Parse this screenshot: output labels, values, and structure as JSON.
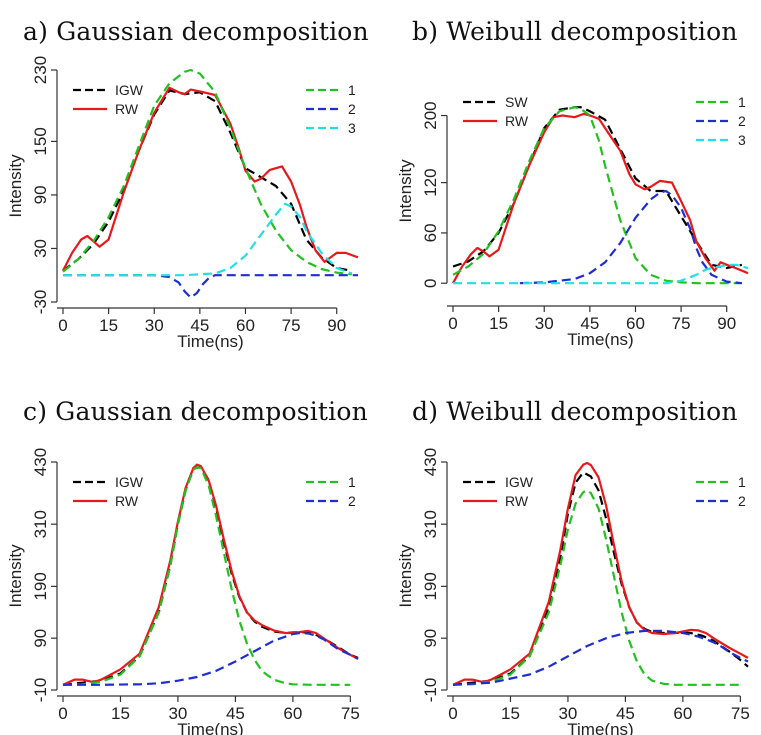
{
  "chart_data": [
    {
      "type": "line",
      "title": "a)  Gaussian decomposition",
      "xlabel": "Time(ns)",
      "ylabel": "Intensity",
      "xlim": [
        0,
        97
      ],
      "ylim": [
        -30,
        230
      ],
      "xticks": [
        0,
        15,
        30,
        45,
        60,
        75,
        90
      ],
      "yticks": [
        -30,
        30,
        90,
        150,
        230
      ],
      "legend_left": [
        "IGW",
        "RW"
      ],
      "legend_right": [
        "1",
        "2",
        "3"
      ],
      "series": [
        {
          "name": "IGW",
          "color": "#000000",
          "style": "dash",
          "x": [
            0,
            5,
            10,
            15,
            20,
            25,
            30,
            35,
            40,
            45,
            50,
            55,
            60,
            65,
            70,
            75,
            80,
            85,
            90,
            95
          ],
          "y": [
            5,
            18,
            35,
            60,
            95,
            140,
            180,
            207,
            203,
            205,
            195,
            160,
            120,
            110,
            100,
            80,
            40,
            20,
            8,
            5
          ]
        },
        {
          "name": "RW",
          "color": "#e8191b",
          "style": "solid",
          "x": [
            0,
            3,
            6,
            8,
            10,
            12,
            15,
            20,
            25,
            30,
            35,
            38,
            40,
            42,
            45,
            50,
            55,
            58,
            60,
            63,
            65,
            68,
            72,
            75,
            78,
            80,
            83,
            86,
            88,
            90,
            93,
            97
          ],
          "y": [
            5,
            25,
            40,
            44,
            38,
            32,
            40,
            93,
            140,
            182,
            210,
            205,
            203,
            208,
            206,
            202,
            170,
            140,
            117,
            105,
            108,
            118,
            122,
            105,
            78,
            55,
            28,
            15,
            20,
            25,
            25,
            20
          ]
        },
        {
          "name": "1",
          "color": "#22c11f",
          "style": "dash",
          "x": [
            0,
            5,
            10,
            15,
            20,
            25,
            30,
            35,
            40,
            42,
            45,
            50,
            55,
            60,
            65,
            70,
            75,
            80,
            85,
            90,
            95
          ],
          "y": [
            4,
            18,
            38,
            65,
            100,
            145,
            190,
            215,
            228,
            230,
            226,
            205,
            165,
            120,
            80,
            50,
            28,
            15,
            7,
            3,
            1
          ]
        },
        {
          "name": "2",
          "color": "#1f2ed1",
          "style": "dash",
          "x": [
            0,
            20,
            30,
            35,
            38,
            40,
            42,
            44,
            46,
            48,
            50,
            55,
            60,
            70,
            80,
            97
          ],
          "y": [
            0,
            0,
            0,
            -2,
            -8,
            -18,
            -25,
            -20,
            -10,
            -3,
            0,
            0,
            0,
            0,
            0,
            0
          ]
        },
        {
          "name": "3",
          "color": "#21e0e6",
          "style": "dash",
          "x": [
            0,
            40,
            50,
            55,
            60,
            65,
            70,
            73,
            75,
            78,
            80,
            85,
            90,
            95
          ],
          "y": [
            0,
            0,
            2,
            8,
            22,
            45,
            68,
            80,
            77,
            65,
            50,
            25,
            8,
            2
          ]
        }
      ]
    },
    {
      "type": "line",
      "title": "b) Weibull decomposition",
      "xlabel": "Time(ns)",
      "ylabel": "Intensity",
      "xlim": [
        0,
        97
      ],
      "ylim": [
        -20,
        240
      ],
      "xticks": [
        0,
        15,
        30,
        45,
        60,
        75,
        90
      ],
      "yticks": [
        0,
        60,
        120,
        200
      ],
      "legend_left": [
        "SW",
        "RW"
      ],
      "legend_right": [
        "1",
        "2",
        "3"
      ],
      "series": [
        {
          "name": "SW",
          "color": "#000000",
          "style": "dash",
          "x": [
            0,
            5,
            10,
            15,
            20,
            25,
            30,
            35,
            40,
            42,
            45,
            50,
            55,
            60,
            65,
            70,
            75,
            80,
            85,
            90,
            95
          ],
          "y": [
            20,
            26,
            38,
            60,
            95,
            140,
            185,
            207,
            210,
            210,
            205,
            195,
            160,
            125,
            110,
            110,
            80,
            50,
            22,
            18,
            22
          ]
        },
        {
          "name": "RW",
          "color": "#e8191b",
          "style": "solid",
          "x": [
            0,
            3,
            6,
            8,
            10,
            12,
            15,
            20,
            25,
            30,
            33,
            36,
            40,
            43,
            45,
            48,
            50,
            55,
            58,
            60,
            63,
            65,
            68,
            72,
            75,
            78,
            80,
            83,
            86,
            88,
            90,
            93,
            97
          ],
          "y": [
            0,
            20,
            35,
            42,
            38,
            32,
            40,
            95,
            140,
            180,
            198,
            200,
            198,
            202,
            200,
            196,
            185,
            158,
            130,
            118,
            112,
            115,
            122,
            120,
            98,
            75,
            50,
            30,
            15,
            25,
            22,
            18,
            12
          ]
        },
        {
          "name": "1",
          "color": "#22c11f",
          "style": "dash",
          "x": [
            0,
            5,
            10,
            15,
            20,
            25,
            30,
            35,
            40,
            42,
            45,
            48,
            50,
            55,
            60,
            65,
            70,
            75,
            80,
            85,
            90,
            95
          ],
          "y": [
            10,
            20,
            35,
            62,
            100,
            145,
            185,
            205,
            210,
            208,
            200,
            170,
            140,
            75,
            30,
            10,
            3,
            1,
            0,
            0,
            0,
            0
          ]
        },
        {
          "name": "2",
          "color": "#1f2ed1",
          "style": "dash",
          "x": [
            22,
            30,
            40,
            45,
            50,
            55,
            60,
            65,
            68,
            70,
            72,
            75,
            78,
            80,
            82,
            85,
            90,
            95
          ],
          "y": [
            0,
            1,
            5,
            12,
            25,
            48,
            78,
            100,
            108,
            110,
            105,
            90,
            65,
            42,
            25,
            10,
            2,
            0
          ]
        },
        {
          "name": "3",
          "color": "#21e0e6",
          "style": "dash",
          "x": [
            0,
            60,
            70,
            75,
            80,
            83,
            85,
            88,
            90,
            93,
            95,
            97
          ],
          "y": [
            0,
            0,
            0,
            3,
            10,
            16,
            18,
            20,
            22,
            22,
            20,
            18
          ]
        }
      ]
    },
    {
      "type": "line",
      "title": "c)  Gaussian decomposition",
      "xlabel": "Time(ns)",
      "ylabel": "Intensity",
      "xlim": [
        0,
        77
      ],
      "ylim": [
        -10,
        430
      ],
      "xticks": [
        0,
        15,
        30,
        45,
        60,
        75
      ],
      "yticks": [
        -10,
        90,
        190,
        310,
        430
      ],
      "legend_left": [
        "IGW",
        "RW"
      ],
      "legend_right": [
        "1",
        "2"
      ],
      "series": [
        {
          "name": "IGW",
          "color": "#000000",
          "style": "dash",
          "x": [
            0,
            5,
            10,
            15,
            20,
            25,
            28,
            30,
            32,
            34,
            36,
            38,
            40,
            42,
            44,
            46,
            48,
            50,
            52,
            55,
            58,
            60,
            62,
            65,
            68,
            72,
            75,
            77
          ],
          "y": [
            0,
            4,
            8,
            22,
            55,
            140,
            230,
            310,
            375,
            418,
            420,
            395,
            340,
            275,
            215,
            170,
            140,
            122,
            112,
            103,
            100,
            101,
            102,
            100,
            90,
            72,
            58,
            52
          ]
        },
        {
          "name": "RW",
          "color": "#e8191b",
          "style": "solid",
          "x": [
            0,
            3,
            5,
            8,
            10,
            15,
            20,
            25,
            28,
            30,
            32,
            34,
            35,
            36,
            38,
            40,
            42,
            44,
            46,
            48,
            50,
            52,
            55,
            58,
            60,
            62,
            64,
            66,
            68,
            72,
            75,
            77
          ],
          "y": [
            0,
            10,
            10,
            5,
            10,
            30,
            60,
            150,
            240,
            315,
            380,
            418,
            425,
            422,
            395,
            345,
            280,
            220,
            172,
            140,
            124,
            115,
            105,
            100,
            100,
            102,
            104,
            100,
            90,
            70,
            58,
            50
          ]
        },
        {
          "name": "1",
          "color": "#22c11f",
          "style": "dash",
          "x": [
            0,
            5,
            10,
            15,
            20,
            25,
            28,
            30,
            32,
            34,
            35,
            36,
            38,
            40,
            42,
            44,
            46,
            48,
            50,
            52,
            55,
            58,
            60,
            65,
            70,
            75
          ],
          "y": [
            0,
            1,
            6,
            20,
            55,
            140,
            230,
            310,
            375,
            415,
            420,
            418,
            385,
            325,
            255,
            185,
            125,
            80,
            48,
            26,
            10,
            3,
            1,
            0,
            0,
            0
          ]
        },
        {
          "name": "2",
          "color": "#1f2ed1",
          "style": "dash",
          "x": [
            0,
            10,
            20,
            25,
            30,
            35,
            40,
            45,
            50,
            55,
            60,
            62,
            64,
            66,
            68,
            70,
            72,
            75,
            77
          ],
          "y": [
            0,
            0,
            1,
            3,
            8,
            15,
            27,
            45,
            65,
            85,
            98,
            100,
            99,
            95,
            88,
            78,
            68,
            58,
            50
          ]
        }
      ]
    },
    {
      "type": "line",
      "title": "d) Weibull decomposition",
      "xlabel": "Time(ns)",
      "ylabel": "Intensity",
      "xlim": [
        0,
        77
      ],
      "ylim": [
        -10,
        430
      ],
      "xticks": [
        0,
        15,
        30,
        45,
        60,
        75
      ],
      "yticks": [
        -10,
        90,
        190,
        310,
        430
      ],
      "legend_left": [
        "IGW",
        "RW"
      ],
      "legend_right": [
        "1",
        "2"
      ],
      "series": [
        {
          "name": "IGW",
          "color": "#000000",
          "style": "dash",
          "x": [
            0,
            5,
            10,
            15,
            20,
            25,
            28,
            30,
            32,
            34,
            36,
            38,
            40,
            42,
            44,
            46,
            48,
            50,
            52,
            55,
            58,
            60,
            62,
            65,
            68,
            72,
            75,
            77
          ],
          "y": [
            0,
            4,
            8,
            22,
            55,
            150,
            245,
            330,
            390,
            410,
            402,
            375,
            320,
            255,
            195,
            150,
            120,
            108,
            102,
            100,
            100,
            101,
            100,
            95,
            85,
            65,
            48,
            35
          ]
        },
        {
          "name": "RW",
          "color": "#e8191b",
          "style": "solid",
          "x": [
            0,
            3,
            5,
            8,
            10,
            15,
            20,
            25,
            28,
            30,
            32,
            34,
            35,
            36,
            38,
            40,
            42,
            44,
            46,
            48,
            50,
            52,
            55,
            58,
            60,
            62,
            64,
            66,
            68,
            72,
            75,
            77
          ],
          "y": [
            0,
            10,
            10,
            5,
            10,
            30,
            60,
            160,
            260,
            340,
            405,
            425,
            428,
            424,
            400,
            345,
            270,
            200,
            150,
            120,
            106,
            100,
            98,
            100,
            103,
            106,
            105,
            100,
            90,
            72,
            60,
            52
          ]
        },
        {
          "name": "1",
          "color": "#22c11f",
          "style": "dash",
          "x": [
            0,
            5,
            10,
            15,
            20,
            25,
            28,
            30,
            32,
            34,
            35,
            36,
            38,
            40,
            42,
            44,
            46,
            48,
            50,
            52,
            55,
            58,
            60,
            65,
            70,
            75
          ],
          "y": [
            0,
            1,
            6,
            20,
            55,
            140,
            230,
            300,
            350,
            372,
            375,
            370,
            340,
            280,
            210,
            140,
            85,
            45,
            20,
            8,
            2,
            0,
            0,
            0,
            0,
            0
          ]
        },
        {
          "name": "2",
          "color": "#1f2ed1",
          "style": "dash",
          "x": [
            0,
            10,
            20,
            25,
            30,
            35,
            40,
            45,
            50,
            55,
            60,
            62,
            64,
            66,
            68,
            70,
            72,
            75,
            77
          ],
          "y": [
            0,
            4,
            20,
            35,
            55,
            75,
            90,
            100,
            104,
            104,
            100,
            97,
            93,
            88,
            82,
            74,
            64,
            52,
            45
          ]
        }
      ]
    }
  ]
}
